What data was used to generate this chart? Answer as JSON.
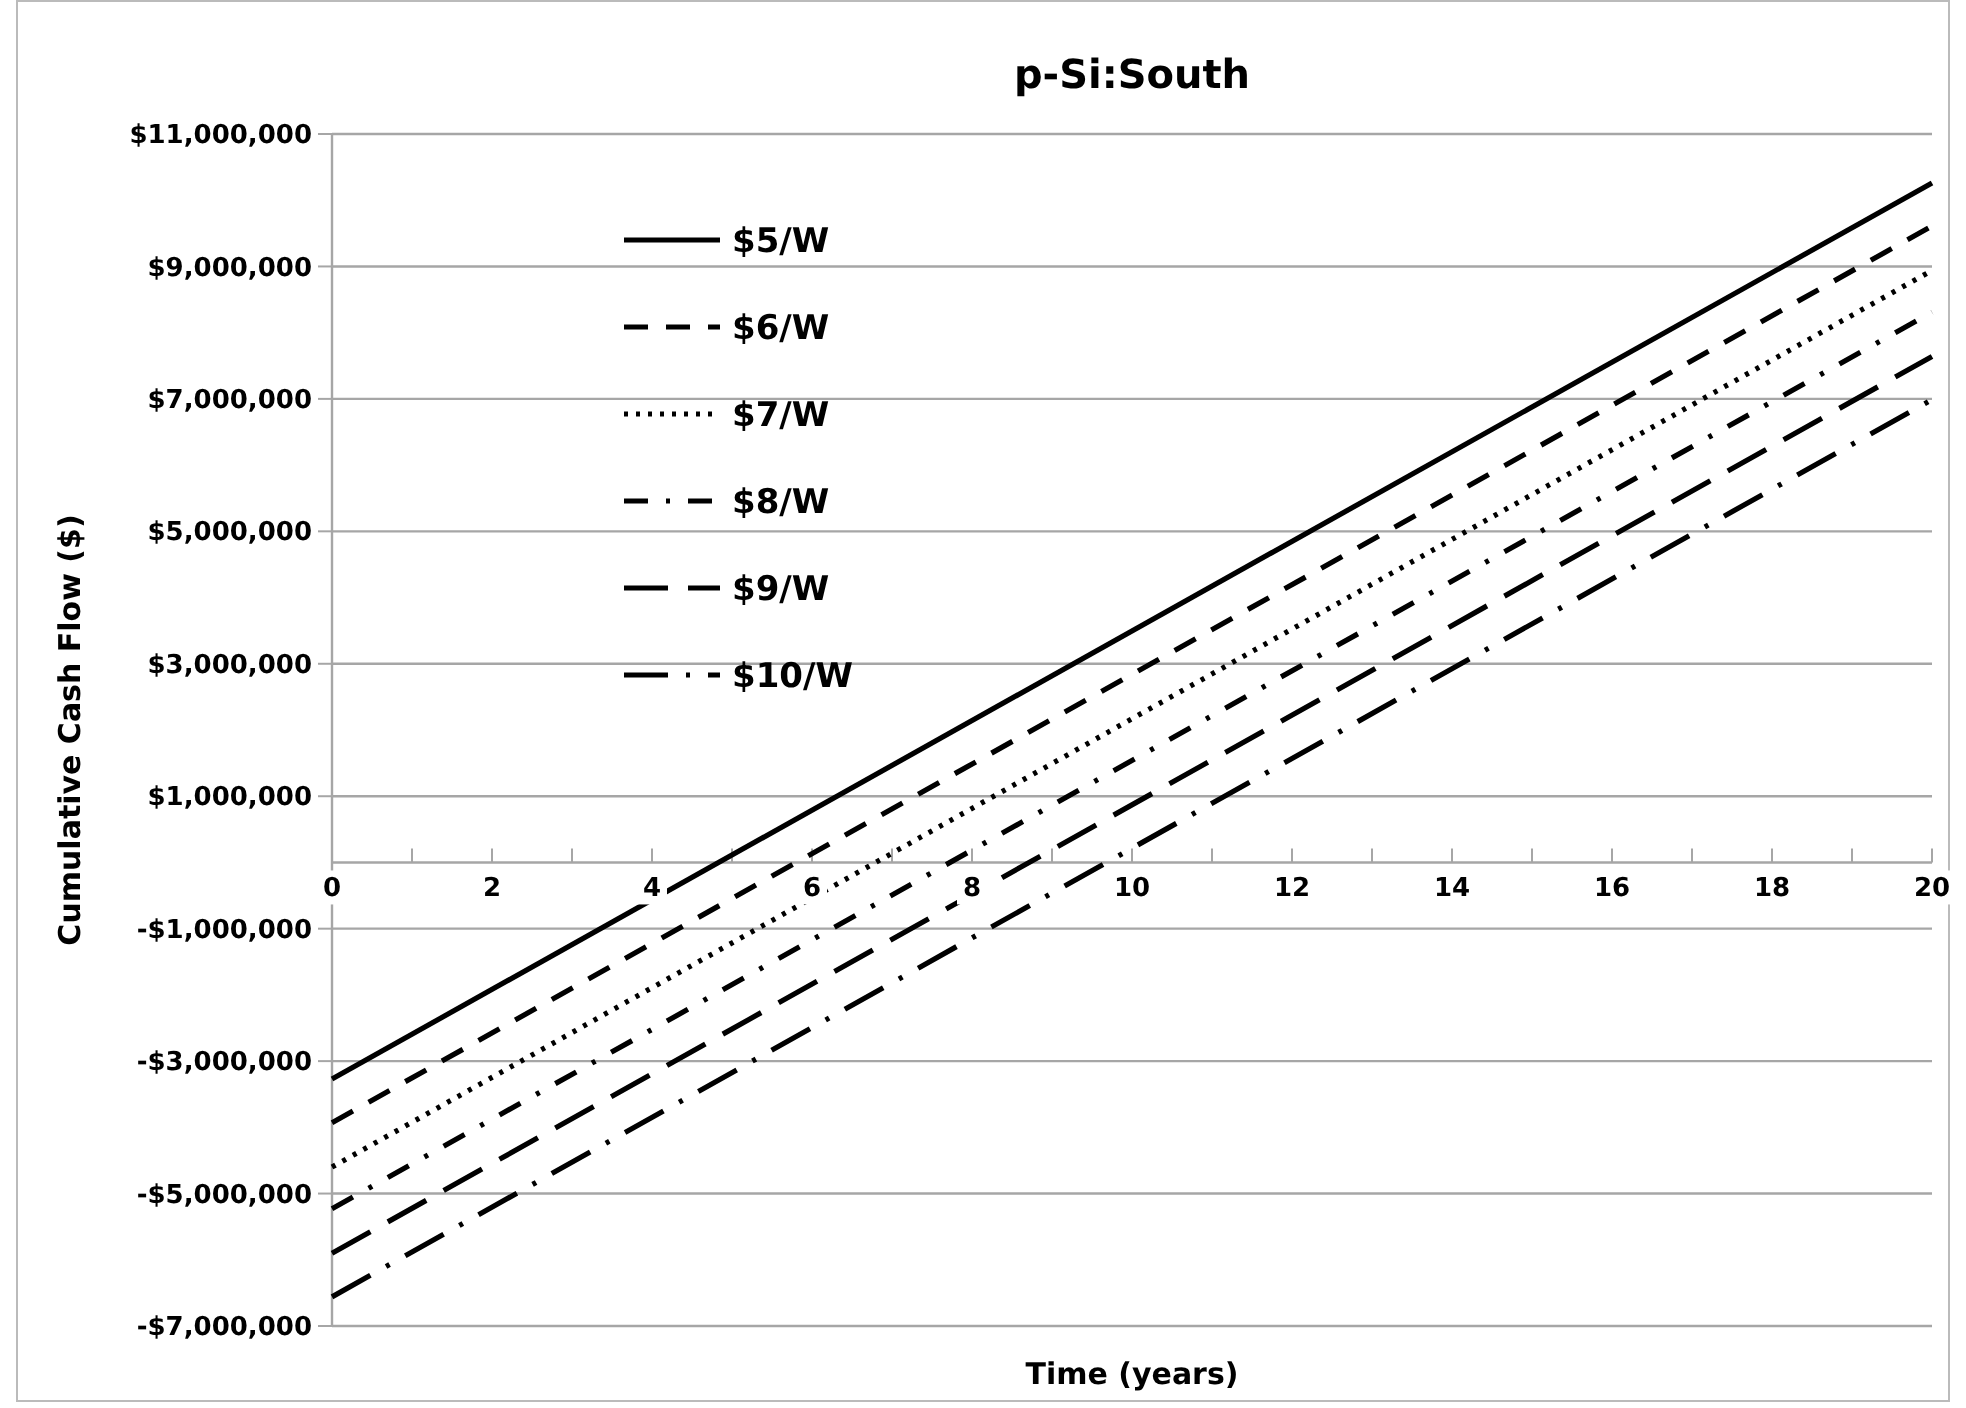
{
  "chart_data": {
    "type": "line",
    "title": "p-Si:South",
    "xlabel": "Time (years)",
    "ylabel": "Cumulative Cash Flow ($)",
    "x": [
      0,
      20
    ],
    "series": [
      {
        "name": "$5/W",
        "color": "#000000",
        "line_style": "solid",
        "values": [
          -3270000,
          10260000
        ]
      },
      {
        "name": "$6/W",
        "color": "#000000",
        "line_style": "dashed",
        "values": [
          -3930000,
          9610000
        ]
      },
      {
        "name": "$7/W",
        "color": "#000000",
        "line_style": "dotted",
        "values": [
          -4600000,
          8940000
        ]
      },
      {
        "name": "$8/W",
        "color": "#000000",
        "line_style": "dashdot",
        "values": [
          -5230000,
          8310000
        ]
      },
      {
        "name": "$9/W",
        "color": "#000000",
        "line_style": "longdash",
        "values": [
          -5900000,
          7640000
        ]
      },
      {
        "name": "$10/W",
        "color": "#000000",
        "line_style": "longdashdot",
        "values": [
          -6560000,
          6990000
        ]
      }
    ],
    "xlim": [
      0,
      20
    ],
    "xticks": [
      0,
      {
        "value": 1,
        "label": null
      },
      2,
      {
        "value": 3,
        "label": null
      },
      4,
      {
        "value": 5,
        "label": null
      },
      6,
      {
        "value": 7,
        "label": null
      },
      8,
      {
        "value": 9,
        "label": null
      },
      10,
      {
        "value": 11,
        "label": null
      },
      12,
      {
        "value": 13,
        "label": null
      },
      14,
      {
        "value": 15,
        "label": null
      },
      16,
      {
        "value": 17,
        "label": null
      },
      18,
      {
        "value": 19,
        "label": null
      },
      20
    ],
    "ylim": [
      -7000000,
      11000000
    ],
    "yticks": [
      {
        "value": -7000000,
        "label": "-$7,000,000"
      },
      {
        "value": -5000000,
        "label": "-$5,000,000"
      },
      {
        "value": -3000000,
        "label": "-$3,000,000"
      },
      {
        "value": -1000000,
        "label": "-$1,000,000"
      },
      {
        "value": 1000000,
        "label": "$1,000,000"
      },
      {
        "value": 3000000,
        "label": "$3,000,000"
      },
      {
        "value": 5000000,
        "label": "$5,000,000"
      },
      {
        "value": 7000000,
        "label": "$7,000,000"
      },
      {
        "value": 9000000,
        "label": "$9,000,000"
      },
      {
        "value": 11000000,
        "label": "$11,000,000"
      }
    ],
    "grid": "y",
    "legend": "top left",
    "marker": "none"
  }
}
